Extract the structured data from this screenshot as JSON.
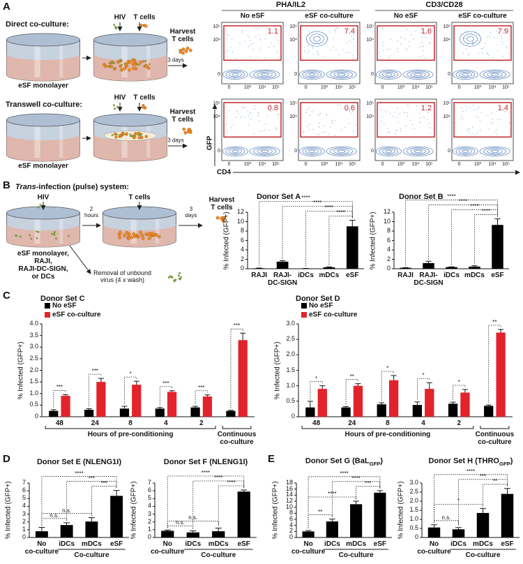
{
  "panel_labels": {
    "a": "A",
    "b": "B",
    "c": "C",
    "d": "D",
    "e": "E"
  },
  "schematic_a": {
    "direct": "Direct co-culture:",
    "transwell": "Transwell co-culture:",
    "monolayer": "eSF monolayer",
    "hiv": "HIV",
    "t_cells": "T cells",
    "days": "3 days",
    "harvest": "Harvest\nT cells"
  },
  "flow": {
    "treatments": [
      "PHA/IL2",
      "CD3/CD28"
    ],
    "columns": [
      "No eSF",
      "eSF co-culture",
      "No eSF",
      "eSF co-culture"
    ],
    "gates": [
      [
        1.1,
        7.4,
        1.6,
        7.9
      ],
      [
        0.8,
        0.6,
        1.2,
        1.4
      ]
    ],
    "y_label": "GFP",
    "x_label": "CD4",
    "ticks": [
      "0",
      "10³",
      "10⁴",
      "10⁵"
    ]
  },
  "schematic_b": {
    "title_italic": "Trans",
    "title": "-infection (pulse) system:",
    "hiv": "HIV",
    "t_cells": "T cells",
    "wait": "2\nhours",
    "days": "3\ndays",
    "harvest": "Harvest\nT cells",
    "cells": "eSF monolayer,\nRAJI,\nRAJI-DC-SIGN,\nor DCs",
    "wash": "Removal of unbound\nvirus (4 x wash)"
  },
  "chart_data": [
    {
      "type": "bar",
      "title": "Donor Set A",
      "y_label": "% Infected (GFP+)",
      "categories": [
        "RAJI",
        "RAJI-\nDC-SIGN",
        "iDCs",
        "mDCs",
        "eSF"
      ],
      "values": [
        0.1,
        1.5,
        0.05,
        0.3,
        9.0
      ],
      "errors": [
        0.05,
        0.2,
        0.02,
        0.1,
        1.3
      ],
      "color": "#000000",
      "ylim": [
        0,
        12
      ],
      "yticks": [
        0,
        2,
        4,
        6,
        8,
        10,
        12
      ],
      "comparisons": [
        {
          "between": [
            "mDCs",
            "eSF"
          ],
          "label": "****"
        },
        {
          "between": [
            "iDCs",
            "eSF"
          ],
          "label": "****"
        },
        {
          "between": [
            "RAJI-\nDC-SIGN",
            "eSF"
          ],
          "label": "****"
        },
        {
          "between": [
            "RAJI",
            "eSF"
          ],
          "label": "****"
        }
      ]
    },
    {
      "type": "bar",
      "title": "Donor Set B",
      "y_label": "% Infected (GFP+)",
      "categories": [
        "RAJI",
        "RAJI-\nDC-SIGN",
        "iDCs",
        "mDCs",
        "eSF"
      ],
      "values": [
        0.2,
        1.2,
        0.35,
        0.45,
        9.3
      ],
      "errors": [
        0.05,
        0.4,
        0.05,
        0.2,
        1.3
      ],
      "color": "#000000",
      "ylim": [
        0,
        12
      ],
      "yticks": [
        0,
        2,
        4,
        6,
        8,
        10,
        12
      ],
      "comparisons": [
        {
          "between": [
            "mDCs",
            "eSF"
          ],
          "label": "****"
        },
        {
          "between": [
            "iDCs",
            "eSF"
          ],
          "label": "****"
        },
        {
          "between": [
            "RAJI-\nDC-SIGN",
            "eSF"
          ],
          "label": "****"
        },
        {
          "between": [
            "RAJI",
            "eSF"
          ],
          "label": "****"
        }
      ]
    },
    {
      "type": "grouped_bar",
      "title": "Donor Set C",
      "y_label": "% Infected (GFP+)",
      "x_label": "Hours of pre-conditioning",
      "categories": [
        "48",
        "24",
        "8",
        "4",
        "2",
        "Continuous\nco-culture"
      ],
      "series": [
        {
          "name": "No eSF",
          "color": "#000000",
          "values": [
            0.25,
            0.3,
            0.35,
            0.35,
            0.4,
            0.25
          ],
          "errors": [
            0.05,
            0.05,
            0.1,
            0.05,
            0.05,
            0.03
          ]
        },
        {
          "name": "eSF co-culture",
          "color": "#e3232c",
          "values": [
            0.9,
            1.5,
            1.38,
            1.07,
            0.87,
            3.3
          ],
          "errors": [
            0.05,
            0.15,
            0.15,
            0.05,
            0.07,
            0.3
          ]
        }
      ],
      "significance": [
        "***",
        "***",
        "*",
        "***",
        "***",
        "***"
      ],
      "legend": "upper left",
      "ylim": [
        0,
        4
      ],
      "yticks": [
        0,
        0.5,
        {
          "value": 1,
          "label": "1.0"
        },
        1.5,
        {
          "value": 2,
          "label": "2.0"
        },
        2.5,
        {
          "value": 3,
          "label": "3.0"
        },
        3.5,
        {
          "value": 4,
          "label": "4.0"
        }
      ]
    },
    {
      "type": "grouped_bar",
      "title": "Donor Set D",
      "y_label": "% Infected (GFP+)",
      "x_label": "Hours of pre-conditioning",
      "categories": [
        "48",
        "24",
        "8",
        "4",
        "2",
        "Continuous\nco-culture"
      ],
      "series": [
        {
          "name": "No eSF",
          "color": "#000000",
          "values": [
            0.3,
            0.3,
            0.4,
            0.38,
            0.42,
            0.35
          ],
          "errors": [
            0.2,
            0.03,
            0.05,
            0.1,
            0.05,
            0.03
          ]
        },
        {
          "name": "eSF co-culture",
          "color": "#e3232c",
          "values": [
            0.9,
            1.0,
            1.18,
            0.9,
            0.78,
            2.72
          ],
          "errors": [
            0.1,
            0.07,
            0.15,
            0.2,
            0.1,
            0.1
          ]
        }
      ],
      "significance": [
        "*",
        "**",
        "*",
        "*",
        "*",
        "**"
      ],
      "legend": "upper left",
      "ylim": [
        0,
        3
      ],
      "yticks": [
        0,
        0.5,
        {
          "value": 1,
          "label": "1.0"
        },
        1.5,
        {
          "value": 2,
          "label": "2.0"
        },
        2.5,
        {
          "value": 3,
          "label": "3.0"
        }
      ]
    },
    {
      "type": "bar",
      "title": "Donor Set E (NLENG1I)",
      "y_label": "% Infected (GFP+)",
      "categories": [
        "No\nco-culture",
        "iDCs",
        "mDCs",
        "eSF"
      ],
      "group_label": "Co-culture",
      "values": [
        0.8,
        1.6,
        2.05,
        5.35
      ],
      "errors": [
        0.5,
        0.3,
        0.5,
        0.7
      ],
      "color": "#000000",
      "ylim": [
        0,
        7
      ],
      "yticks": [
        0,
        1,
        2,
        3,
        4,
        5,
        6,
        7
      ],
      "comparisons": [
        {
          "between": [
            "No\nco-culture",
            "iDCs"
          ],
          "label": "n.s."
        },
        {
          "between": [
            "No\nco-culture",
            "mDCs"
          ],
          "label": "n.s."
        },
        {
          "between": [
            "mDCs",
            "eSF"
          ],
          "label": "***"
        },
        {
          "between": [
            "iDCs",
            "eSF"
          ],
          "label": "***"
        },
        {
          "between": [
            "No\nco-culture",
            "eSF"
          ],
          "label": "****"
        }
      ]
    },
    {
      "type": "bar",
      "title": "Donor Set F (NLENG1I)",
      "y_label": "% Infected (GFP+)",
      "categories": [
        "No\nco-culture",
        "iDCs",
        "mDCs",
        "eSF"
      ],
      "group_label": "Co-culture",
      "values": [
        0.85,
        0.65,
        0.8,
        5.9
      ],
      "errors": [
        0.1,
        0.2,
        0.4,
        0.2
      ],
      "color": "#000000",
      "ylim": [
        0,
        7
      ],
      "yticks": [
        0,
        1,
        2,
        3,
        4,
        5,
        6,
        7
      ],
      "comparisons": [
        {
          "between": [
            "No\nco-culture",
            "iDCs"
          ],
          "label": "n.s."
        },
        {
          "between": [
            "No\nco-culture",
            "mDCs"
          ],
          "label": "n.s."
        },
        {
          "between": [
            "mDCs",
            "eSF"
          ],
          "label": "****"
        },
        {
          "between": [
            "iDCs",
            "eSF"
          ],
          "label": "****"
        },
        {
          "between": [
            "No\nco-culture",
            "eSF"
          ],
          "label": "****"
        }
      ]
    },
    {
      "type": "bar",
      "title": "Donor Set G (BaL",
      "title_sub": "GFP",
      "title_end": ")",
      "y_label": "% Infected (GFP+)",
      "categories": [
        "No\nco-culture",
        "iDCs",
        "mDCs",
        "eSF"
      ],
      "group_label": "Co-culture",
      "values": [
        2.0,
        5.3,
        11.0,
        14.8
      ],
      "errors": [
        0.3,
        0.8,
        1.0,
        0.7
      ],
      "color": "#000000",
      "ylim": [
        0,
        18
      ],
      "yticks": [
        0,
        2,
        4,
        6,
        8,
        10,
        12,
        14,
        16,
        18
      ],
      "comparisons": [
        {
          "between": [
            "No\nco-culture",
            "iDCs"
          ],
          "label": "**"
        },
        {
          "between": [
            "No\nco-culture",
            "mDCs"
          ],
          "label": "****"
        },
        {
          "between": [
            "mDCs",
            "eSF"
          ],
          "label": "***"
        },
        {
          "between": [
            "iDCs",
            "eSF"
          ],
          "label": "****"
        },
        {
          "between": [
            "No\nco-culture",
            "eSF"
          ],
          "label": "****"
        }
      ]
    },
    {
      "type": "bar",
      "title": "Donor Set H (THRO",
      "title_sub": "GFP",
      "title_end": ")",
      "y_label": "% Infected (GFP+)",
      "categories": [
        "No\nco-culture",
        "iDCs",
        "mDCs",
        "eSF"
      ],
      "group_label": "Co-culture",
      "values": [
        0.55,
        0.45,
        1.35,
        2.4
      ],
      "errors": [
        0.15,
        0.1,
        0.25,
        0.3
      ],
      "color": "#000000",
      "ylim": [
        0,
        3
      ],
      "yticks": [
        0,
        0.5,
        {
          "value": 1,
          "label": "1.0"
        },
        1.5,
        {
          "value": 2,
          "label": "2.0"
        },
        2.5,
        {
          "value": 3,
          "label": "3.0"
        }
      ],
      "comparisons": [
        {
          "between": [
            "No\nco-culture",
            "iDCs"
          ],
          "label": "n.s."
        },
        {
          "between": [
            "No\nco-culture",
            "mDCs"
          ],
          "label": "*"
        },
        {
          "between": [
            "mDCs",
            "eSF"
          ],
          "label": "**"
        },
        {
          "between": [
            "iDCs",
            "eSF"
          ],
          "label": "***"
        },
        {
          "between": [
            "No\nco-culture",
            "eSF"
          ],
          "label": "****"
        }
      ]
    }
  ]
}
